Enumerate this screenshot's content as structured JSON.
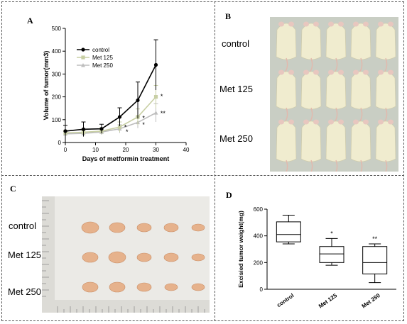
{
  "panels": {
    "A": "A",
    "B": "B",
    "C": "C",
    "D": "D"
  },
  "photo_labels": {
    "B": [
      "control",
      "Met 125",
      "Met 250"
    ],
    "C": [
      "control",
      "Met 125",
      "Met 250"
    ]
  },
  "colors": {
    "control": "#000000",
    "met125": "#c8cfa4",
    "met250": "#bebebe",
    "mouse_fur": "#f0eccf",
    "tumor": "#e6b28c",
    "photo_bg_B": "#c9cec4",
    "photo_bg_C": "#ebeae6"
  },
  "chart_data": [
    {
      "panel": "A",
      "type": "line",
      "xlabel": "Days of metformin treatment",
      "ylabel": "Volume of tumor(mm3)",
      "xlim": [
        0,
        40
      ],
      "ylim": [
        0,
        500
      ],
      "xticks": [
        0,
        10,
        20,
        30,
        40
      ],
      "yticks": [
        0,
        100,
        200,
        300,
        400,
        500
      ],
      "legend_position": "top-left",
      "grid": false,
      "series": [
        {
          "name": "control",
          "color_key": "control",
          "x": [
            0,
            6,
            12,
            18,
            24,
            30
          ],
          "y": [
            50,
            58,
            60,
            112,
            185,
            340
          ],
          "err": [
            25,
            32,
            20,
            40,
            80,
            110
          ]
        },
        {
          "name": "Met 125",
          "color_key": "met125",
          "x": [
            0,
            6,
            12,
            18,
            24,
            30
          ],
          "y": [
            42,
            45,
            50,
            68,
            112,
            200
          ],
          "err": [
            12,
            14,
            15,
            22,
            35,
            50
          ]
        },
        {
          "name": "Met 250",
          "color_key": "met250",
          "x": [
            0,
            6,
            12,
            18,
            24,
            30
          ],
          "y": [
            38,
            40,
            46,
            60,
            88,
            130
          ],
          "err": [
            10,
            12,
            12,
            18,
            25,
            40
          ]
        }
      ],
      "annotations": [
        {
          "text": "*",
          "x": 19.5,
          "y": 70
        },
        {
          "text": "*",
          "x": 20.0,
          "y": 50
        },
        {
          "text": "*",
          "x": 25.5,
          "y": 110
        },
        {
          "text": "*",
          "x": 25.5,
          "y": 80
        },
        {
          "text": "*",
          "x": 31.5,
          "y": 205
        },
        {
          "text": "**",
          "x": 31.5,
          "y": 130
        }
      ]
    },
    {
      "panel": "D",
      "type": "box",
      "ylabel": "Excisied tumor weight(mg)",
      "ylim": [
        0,
        600
      ],
      "yticks": [
        0,
        200,
        400,
        600
      ],
      "categories": [
        "control",
        "Met 125",
        "Met 250"
      ],
      "boxes": [
        {
          "min": 340,
          "q1": 355,
          "median": 410,
          "q3": 505,
          "max": 555,
          "sig": ""
        },
        {
          "min": 180,
          "q1": 200,
          "median": 265,
          "q3": 320,
          "max": 380,
          "sig": "*"
        },
        {
          "min": 50,
          "q1": 115,
          "median": 200,
          "q3": 320,
          "max": 340,
          "sig": "**"
        }
      ]
    }
  ]
}
